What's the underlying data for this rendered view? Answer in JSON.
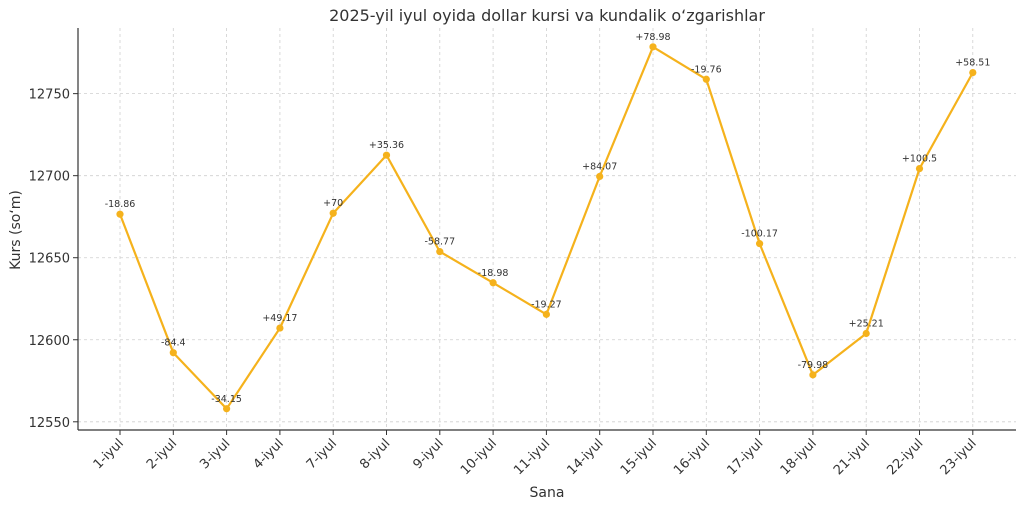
{
  "chart_data": {
    "type": "line",
    "title": "2025-yil iyul oyida dollar kursi va kundalik o‘zgarishlar",
    "xlabel": "Sana",
    "ylabel": "Kurs (so‘m)",
    "ylim": [
      12545,
      12790
    ],
    "yticks": [
      12550,
      12600,
      12650,
      12700,
      12750
    ],
    "grid": true,
    "categories": [
      "1-iyul",
      "2-iyul",
      "3-iyul",
      "4-iyul",
      "7-iyul",
      "8-iyul",
      "9-iyul",
      "10-iyul",
      "11-iyul",
      "14-iyul",
      "15-iyul",
      "16-iyul",
      "17-iyul",
      "18-iyul",
      "21-iyul",
      "22-iyul",
      "23-iyul"
    ],
    "values": [
      12676.5,
      12592.1,
      12557.95,
      12607.12,
      12677.12,
      12712.48,
      12653.71,
      12634.73,
      12615.46,
      12699.53,
      12778.51,
      12758.75,
      12658.58,
      12578.6,
      12603.81,
      12704.31,
      12762.82
    ],
    "data_labels": [
      "-18.86",
      "-84.4",
      "-34.15",
      "+49.17",
      "+70",
      "+35.36",
      "-58.77",
      "-18.98",
      "-19.27",
      "+84.07",
      "+78.98",
      "-19.76",
      "-100.17",
      "-79.98",
      "+25.21",
      "+100.5",
      "+58.51"
    ],
    "colors": {
      "line": "#F5B21C",
      "marker": "#F5B21C"
    }
  }
}
